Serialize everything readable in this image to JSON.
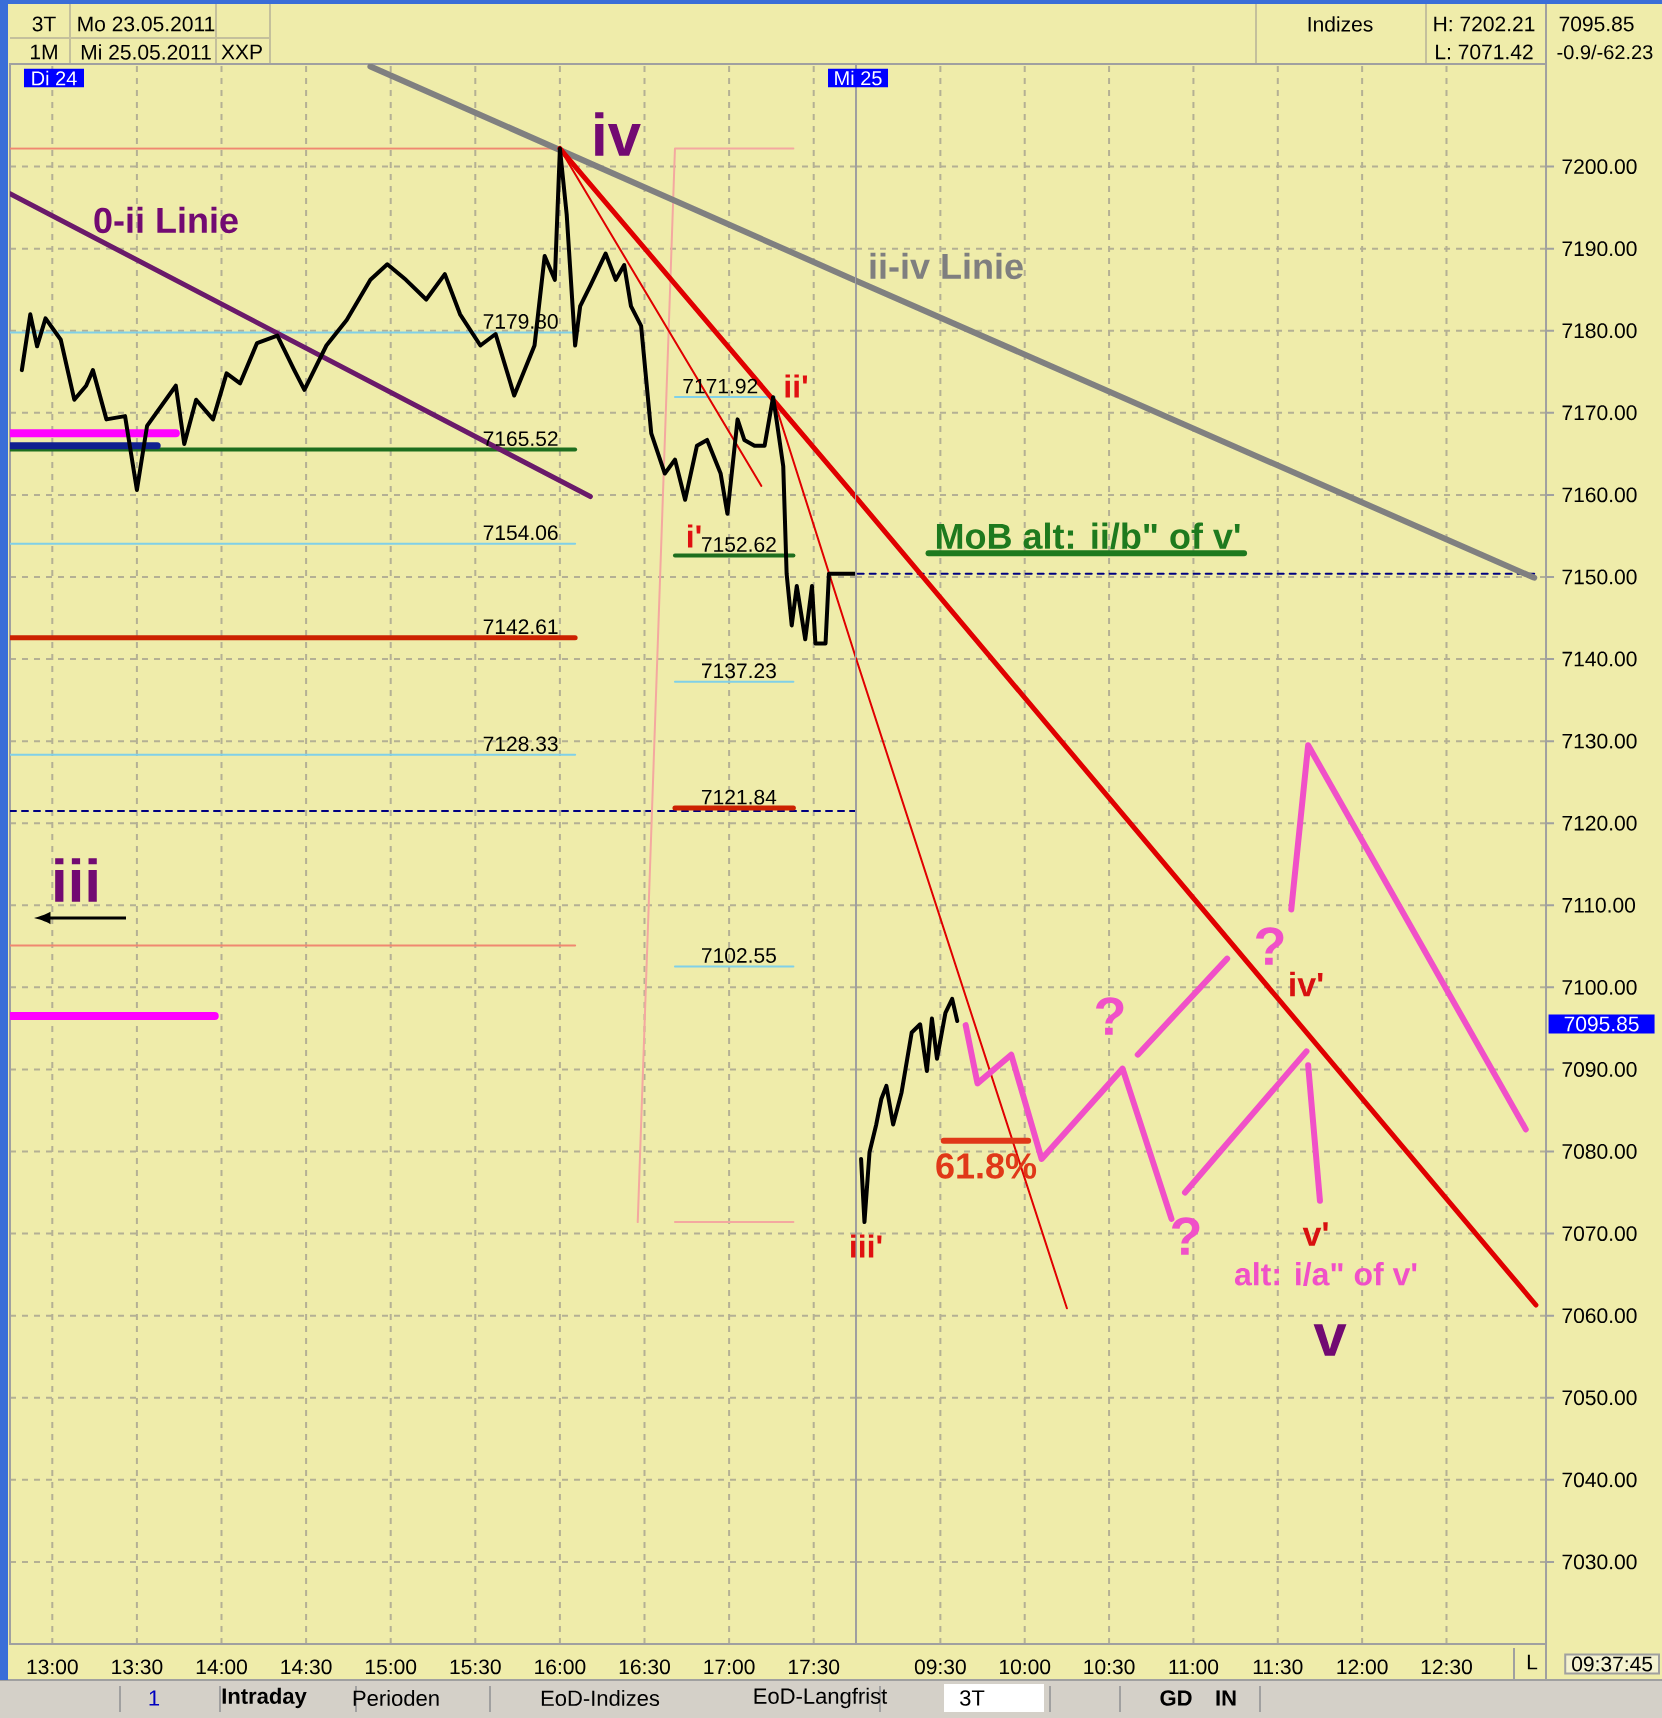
{
  "chart_data": [
    {
      "type": "line",
      "tick_labels": "x",
      "xlim": [
        12.75,
        17.75
      ],
      "ylim": [
        7020,
        7212.5
      ],
      "xticks": [
        {
          "value": 13,
          "label": "13:00"
        },
        {
          "value": 13.5,
          "label": "13:30"
        },
        {
          "value": 14,
          "label": "14:00"
        },
        {
          "value": 14.5,
          "label": "14:30"
        },
        {
          "value": 15,
          "label": "15:00"
        },
        {
          "value": 15.5,
          "label": "15:30"
        },
        {
          "value": 16,
          "label": "16:00"
        },
        {
          "value": 16.5,
          "label": "16:30"
        },
        {
          "value": 17,
          "label": "17:00"
        },
        {
          "value": 17.5,
          "label": "17:30"
        }
      ],
      "yticks": [
        7030,
        7040,
        7050,
        7060,
        7070,
        7080,
        7090,
        7100,
        7110,
        7120,
        7130,
        7140,
        7150,
        7160,
        7170,
        7180,
        7190,
        7200
      ],
      "grid": true,
      "series": [
        {
          "color": "#f08870",
          "x": [
            12.75,
            16.0
          ],
          "values": [
            7202.2,
            7202.2
          ]
        },
        {
          "color": "#80d0e8",
          "x": [
            12.75,
            16.09
          ],
          "values": [
            7179.8,
            7179.8
          ],
          "value_labels": [
            null,
            "7179.80"
          ]
        },
        {
          "color": "#1e6e1e",
          "x": [
            12.75,
            16.09
          ],
          "values": [
            7165.52,
            7165.52
          ],
          "value_labels": [
            null,
            "7165.52"
          ]
        },
        {
          "color": "#80d0e8",
          "x": [
            12.75,
            16.09
          ],
          "values": [
            7154.06,
            7154.06
          ],
          "value_labels": [
            null,
            "7154.06"
          ]
        },
        {
          "color": "#cc2200",
          "x": [
            12.75,
            16.09
          ],
          "values": [
            7142.61,
            7142.61
          ],
          "value_labels": [
            null,
            "7142.61"
          ]
        },
        {
          "color": "#80d0e8",
          "x": [
            12.75,
            16.09
          ],
          "values": [
            7128.33,
            7128.33
          ],
          "value_labels": [
            null,
            "7128.33"
          ]
        },
        {
          "color": "#f08870",
          "x": [
            12.75,
            16.09
          ],
          "values": [
            7105.1,
            7105.1
          ]
        },
        {
          "color": "#ff00ff",
          "x": [
            12.75,
            13.73
          ],
          "values": [
            7167.5,
            7167.5
          ]
        },
        {
          "color": "#102090",
          "x": [
            12.75,
            13.62
          ],
          "values": [
            7166.0,
            7166.0
          ]
        },
        {
          "color": "#ff00ff",
          "x": [
            12.75,
            13.96
          ],
          "values": [
            7096.5,
            7096.5
          ]
        },
        {
          "color": "#000080",
          "line_style": "dashed",
          "x": [
            12.75,
            17.75
          ],
          "values": [
            7121.5,
            7121.5
          ]
        },
        {
          "color": "#80d0e8",
          "x": [
            16.68,
            17.27
          ],
          "values": [
            7171.92,
            7171.92
          ],
          "value_labels": [
            null,
            "7171.92"
          ]
        },
        {
          "color": "#1e6e1e",
          "x": [
            16.68,
            17.38
          ],
          "values": [
            7152.62,
            7152.62
          ],
          "value_labels": [
            null,
            "7152.62"
          ]
        },
        {
          "color": "#80d0e8",
          "x": [
            16.68,
            17.38
          ],
          "values": [
            7137.23,
            7137.23
          ],
          "value_labels": [
            null,
            "7137.23"
          ]
        },
        {
          "color": "#cc2200",
          "x": [
            16.68,
            17.38
          ],
          "values": [
            7121.84,
            7121.84
          ],
          "value_labels": [
            null,
            "7121.84"
          ]
        },
        {
          "color": "#80d0e8",
          "x": [
            16.68,
            17.38
          ],
          "values": [
            7102.55,
            7102.55
          ],
          "value_labels": [
            null,
            "7102.55"
          ]
        },
        {
          "color": "#f4a8a0",
          "x": [
            17.38,
            16.68,
            16.46
          ],
          "values": [
            7202.2,
            7202.2,
            7071.4
          ]
        },
        {
          "color": "#f4a8a0",
          "x": [
            16.68,
            17.38
          ],
          "values": [
            7071.4,
            7071.4
          ]
        },
        {
          "color": "#6a1a6a",
          "x": [
            12.75,
            16.18
          ],
          "values": [
            7196.7,
            7159.8
          ]
        },
        {
          "color": "#808080",
          "x": [
            14.88,
            17.75
          ],
          "values": [
            7212.2,
            7186.1
          ]
        },
        {
          "color": "#e00000",
          "x": [
            16.0,
            17.75
          ],
          "values": [
            7202.2,
            7159.7
          ]
        },
        {
          "color": "#e00000",
          "x": [
            16.0,
            17.19
          ],
          "values": [
            7202.2,
            7161.1
          ]
        },
        {
          "color": "#e00000",
          "x": [
            17.26,
            17.75
          ],
          "values": [
            7171.9,
            7140.1
          ]
        },
        {
          "color": "#000000",
          "x": [
            12.82,
            12.87,
            12.91,
            12.96,
            13.05,
            13.13,
            13.2,
            13.24,
            13.32,
            13.43,
            13.5,
            13.56,
            13.73,
            13.78,
            13.85,
            13.95,
            14.03,
            14.11,
            14.21,
            14.33,
            14.43,
            14.49,
            14.62,
            14.74,
            14.88,
            14.98,
            15.09,
            15.21,
            15.32,
            15.41,
            15.53,
            15.62,
            15.73,
            15.85,
            15.91,
            15.97,
            16.0,
            16.04,
            16.09,
            16.12,
            16.18,
            16.27,
            16.33,
            16.38,
            16.42,
            16.48,
            16.54,
            16.62,
            16.68,
            16.74,
            16.81,
            16.87,
            16.95,
            16.99,
            17.05,
            17.09,
            17.15,
            17.21,
            17.26,
            17.28,
            17.32,
            17.34,
            17.37,
            17.4,
            17.45,
            17.49,
            17.51,
            17.57,
            17.59,
            17.75
          ],
          "values": [
            7175.2,
            7182.0,
            7178.1,
            7181.5,
            7178.9,
            7171.6,
            7173.3,
            7175.2,
            7169.2,
            7169.6,
            7160.6,
            7168.4,
            7173.3,
            7166.2,
            7171.6,
            7169.2,
            7174.8,
            7173.6,
            7178.5,
            7179.4,
            7175.2,
            7172.8,
            7178.2,
            7181.3,
            7186.2,
            7188.1,
            7186.2,
            7183.8,
            7186.9,
            7182.0,
            7178.2,
            7179.6,
            7172.1,
            7178.2,
            7189.1,
            7186.2,
            7202.2,
            7194.2,
            7178.2,
            7183.0,
            7185.5,
            7189.4,
            7186.2,
            7188.0,
            7183.0,
            7180.6,
            7167.5,
            7162.6,
            7164.3,
            7159.4,
            7166.0,
            7166.7,
            7162.6,
            7157.7,
            7169.2,
            7166.7,
            7166.0,
            7166.0,
            7171.9,
            7169.2,
            7163.5,
            7150.4,
            7144.1,
            7148.9,
            7142.4,
            7148.9,
            7141.9,
            7141.9,
            7150.4,
            7150.4
          ]
        }
      ],
      "annotations": [
        "iv",
        "0-ii Linie",
        "ii'",
        "i'",
        "iii",
        "Di 24",
        "3T",
        "Mo 23.05.2011",
        "1M",
        "Mi 25.05.2011",
        "XXP",
        "1",
        "Intraday",
        "Perioden",
        "EoD-Indizes",
        "EoD-Langfrist",
        "3T",
        "GD",
        "IN"
      ]
    },
    {
      "type": "line",
      "xlim": [
        9.0,
        13.09
      ],
      "ylim": [
        7020,
        7212.5
      ],
      "xticks": [
        {
          "value": 9.5,
          "label": "09:30"
        },
        {
          "value": 10,
          "label": "10:00"
        },
        {
          "value": 10.5,
          "label": "10:30"
        },
        {
          "value": 11,
          "label": "11:00"
        },
        {
          "value": 11.5,
          "label": "11:30"
        },
        {
          "value": 12,
          "label": "12:00"
        },
        {
          "value": 12.5,
          "label": "12:30"
        }
      ],
      "yticks": [
        {
          "value": 7030,
          "label": "7030.00"
        },
        {
          "value": 7040,
          "label": "7040.00"
        },
        {
          "value": 7050,
          "label": "7050.00"
        },
        {
          "value": 7060,
          "label": "7060.00"
        },
        {
          "value": 7070,
          "label": "7070.00"
        },
        {
          "value": 7080,
          "label": "7080.00"
        },
        {
          "value": 7090,
          "label": "7090.00"
        },
        {
          "value": 7100,
          "label": "7100.00"
        },
        {
          "value": 7110,
          "label": "7110.00"
        },
        {
          "value": 7120,
          "label": "7120.00"
        },
        {
          "value": 7130,
          "label": "7130.00"
        },
        {
          "value": 7140,
          "label": "7140.00"
        },
        {
          "value": 7150,
          "label": "7150.00"
        },
        {
          "value": 7160,
          "label": "7160.00"
        },
        {
          "value": 7170,
          "label": "7170.00"
        },
        {
          "value": 7180,
          "label": "7180.00"
        },
        {
          "value": 7190,
          "label": "7190.00"
        },
        {
          "value": 7200,
          "label": "7200.00"
        }
      ],
      "grid": true,
      "series": [
        {
          "color": "#000080",
          "line_style": "dashed",
          "x": [
            9.01,
            13.02
          ],
          "values": [
            7150.4,
            7150.4
          ]
        },
        {
          "color": "#808080",
          "x": [
            9.0,
            13.02
          ],
          "values": [
            7186.1,
            7149.9
          ]
        },
        {
          "color": "#e00000",
          "x": [
            9.0,
            13.03
          ],
          "values": [
            7159.7,
            7061.3
          ]
        },
        {
          "color": "#e00000",
          "x": [
            9.0,
            10.25
          ],
          "values": [
            7140.1,
            7060.9
          ]
        },
        {
          "color": "#1e7a1e",
          "x": [
            9.43,
            11.3
          ],
          "values": [
            7152.9,
            7152.9
          ]
        },
        {
          "color": "#e03818",
          "x": [
            9.52,
            10.02
          ],
          "values": [
            7081.3,
            7081.3
          ]
        },
        {
          "color": "#f050c8",
          "x": [
            9.65,
            9.72,
            9.92,
            10.1,
            10.58,
            10.87
          ],
          "values": [
            7095.4,
            7088.3,
            7091.8,
            7079.1,
            7090.1,
            7071.8
          ]
        },
        {
          "color": "#f050c8",
          "x": [
            10.67,
            11.2
          ],
          "values": [
            7091.8,
            7103.5
          ]
        },
        {
          "color": "#f050c8",
          "x": [
            11.58,
            11.68,
            12.97
          ],
          "values": [
            7109.5,
            7129.5,
            7082.7
          ]
        },
        {
          "color": "#f050c8",
          "x": [
            10.95,
            11.67
          ],
          "values": [
            7075.0,
            7092.2
          ]
        },
        {
          "color": "#f050c8",
          "x": [
            11.68,
            11.75
          ],
          "values": [
            7090.5,
            7074.0
          ]
        },
        {
          "color": "#000000",
          "x": [
            9.03,
            9.05,
            9.08,
            9.12,
            9.15,
            9.18,
            9.22,
            9.27,
            9.33,
            9.38,
            9.42,
            9.45,
            9.48,
            9.53,
            9.57,
            9.6
          ],
          "values": [
            7079.1,
            7071.4,
            7079.9,
            7083.3,
            7086.4,
            7088.0,
            7083.3,
            7087.2,
            7094.5,
            7095.5,
            7089.8,
            7096.2,
            7091.3,
            7096.9,
            7098.6,
            7095.9
          ]
        }
      ],
      "annotations": [
        "Mi 25",
        "ii-iv Linie",
        "iii'",
        "MoB alt: ii/b\" of v'",
        "61.8%",
        "?",
        "?",
        "?",
        "iv'",
        "v'",
        "alt: i/a\" of v'",
        "v",
        "7095.85",
        "Indizes",
        "H: 7202.21",
        "L: 7071.42",
        "7095.85",
        "-0.9/-62.23",
        "L",
        "09:37:45"
      ]
    }
  ]
}
